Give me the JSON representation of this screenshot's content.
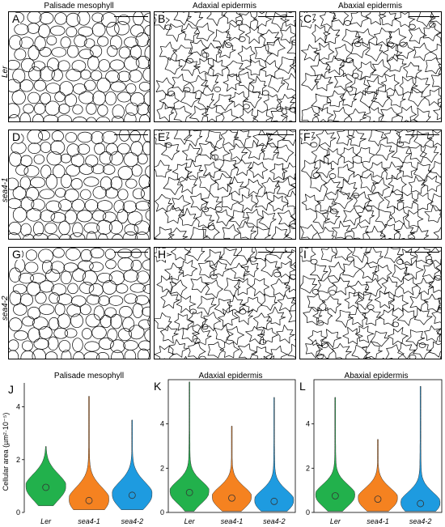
{
  "column_titles": [
    "Palisade mesophyll",
    "Adaxial epidermis",
    "Abaxial epidermis"
  ],
  "row_labels": [
    "Ler",
    "sea4-1",
    "sea4-2"
  ],
  "panel_letters": [
    "A",
    "B",
    "C",
    "D",
    "E",
    "F",
    "G",
    "H",
    "I"
  ],
  "tissue_types": [
    "palisade",
    "epidermis",
    "epidermis",
    "palisade",
    "epidermis",
    "epidermis",
    "palisade",
    "epidermis",
    "epidermis"
  ],
  "chart_data": [
    {
      "type": "violin",
      "letter": "J",
      "title": "Palisade mesophyll",
      "ylabel": "Cellular area (µm²·10⁻⁵)",
      "categories": [
        "Ler",
        "sea4-1",
        "sea4-2"
      ],
      "colors": [
        "#22b14c",
        "#f58220",
        "#1e9be0"
      ],
      "ylim": [
        0,
        4.6
      ],
      "yticks": [
        0,
        2,
        4
      ],
      "series": [
        {
          "median": 0.95,
          "min": 0.25,
          "max": 2.5
        },
        {
          "median": 0.45,
          "min": 0.1,
          "max": 4.4
        },
        {
          "median": 0.65,
          "min": 0.1,
          "max": 3.5
        }
      ]
    },
    {
      "type": "violin",
      "letter": "K",
      "title": "Adaxial epidermis",
      "ylabel": "",
      "categories": [
        "Ler",
        "sea4-1",
        "sea4-2"
      ],
      "colors": [
        "#22b14c",
        "#f58220",
        "#1e9be0"
      ],
      "ylim": [
        0,
        6
      ],
      "yticks": [
        0,
        2,
        4
      ],
      "series": [
        {
          "median": 0.9,
          "min": 0.05,
          "max": 5.9
        },
        {
          "median": 0.65,
          "min": 0.05,
          "max": 3.9
        },
        {
          "median": 0.5,
          "min": 0.05,
          "max": 5.2
        }
      ]
    },
    {
      "type": "violin",
      "letter": "L",
      "title": "Abaxial epidermis",
      "ylabel": "",
      "categories": [
        "Ler",
        "sea4-1",
        "sea4-2"
      ],
      "colors": [
        "#22b14c",
        "#f58220",
        "#1e9be0"
      ],
      "ylim": [
        0,
        6
      ],
      "yticks": [
        0,
        2,
        4
      ],
      "series": [
        {
          "median": 0.75,
          "min": 0.05,
          "max": 5.2
        },
        {
          "median": 0.6,
          "min": 0.05,
          "max": 3.3
        },
        {
          "median": 0.4,
          "min": 0.05,
          "max": 5.7
        }
      ]
    }
  ]
}
